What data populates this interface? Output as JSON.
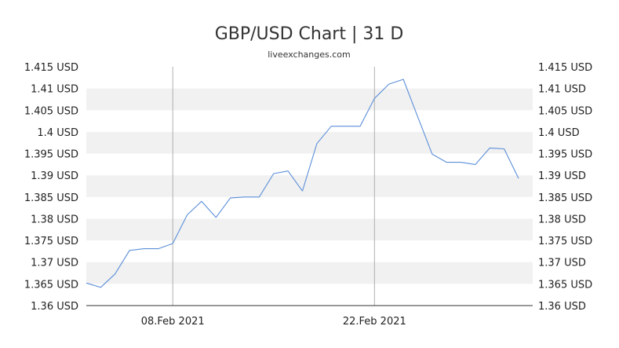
{
  "chart_data": {
    "type": "line",
    "title": "GBP/USD Chart | 31 D",
    "subtitle": "liveexchanges.com",
    "xlabel": "",
    "ylabel": "",
    "ylim": [
      1.36,
      1.415
    ],
    "y_tick_values": [
      1.36,
      1.365,
      1.37,
      1.375,
      1.38,
      1.385,
      1.39,
      1.395,
      1.4,
      1.405,
      1.41,
      1.415
    ],
    "y_tick_labels": [
      "1.36 USD",
      "1.365 USD",
      "1.37 USD",
      "1.375 USD",
      "1.38 USD",
      "1.385 USD",
      "1.39 USD",
      "1.395 USD",
      "1.4 USD",
      "1.405 USD",
      "1.41 USD",
      "1.415 USD"
    ],
    "x_range": [
      "2021-02-02",
      "2021-03-03"
    ],
    "x_ticks": [
      {
        "date": "2021-02-08",
        "label": "08.Feb 2021"
      },
      {
        "date": "2021-02-22",
        "label": "22.Feb 2021"
      }
    ],
    "grid": "alternating horizontal bands, vertical lines at x ticks",
    "legend": "none",
    "colors": {
      "line": "#5b8fd8",
      "band": "#f1f1f1",
      "vgrid": "#b0b0b0",
      "axis": "#333333"
    },
    "series": [
      {
        "points": [
          {
            "date": "2021-02-02",
            "value": 1.3652
          },
          {
            "date": "2021-02-03",
            "value": 1.3642
          },
          {
            "date": "2021-02-04",
            "value": 1.3673
          },
          {
            "date": "2021-02-05",
            "value": 1.3727
          },
          {
            "date": "2021-02-06",
            "value": 1.3731
          },
          {
            "date": "2021-02-07",
            "value": 1.3731
          },
          {
            "date": "2021-02-08",
            "value": 1.3743
          },
          {
            "date": "2021-02-09",
            "value": 1.3809
          },
          {
            "date": "2021-02-10",
            "value": 1.384
          },
          {
            "date": "2021-02-11",
            "value": 1.3803
          },
          {
            "date": "2021-02-12",
            "value": 1.3848
          },
          {
            "date": "2021-02-13",
            "value": 1.385
          },
          {
            "date": "2021-02-14",
            "value": 1.385
          },
          {
            "date": "2021-02-15",
            "value": 1.3904
          },
          {
            "date": "2021-02-16",
            "value": 1.391
          },
          {
            "date": "2021-02-17",
            "value": 1.3864
          },
          {
            "date": "2021-02-18",
            "value": 1.3973
          },
          {
            "date": "2021-02-19",
            "value": 1.4013
          },
          {
            "date": "2021-02-20",
            "value": 1.4013
          },
          {
            "date": "2021-02-21",
            "value": 1.4013
          },
          {
            "date": "2021-02-22",
            "value": 1.4077
          },
          {
            "date": "2021-02-23",
            "value": 1.411
          },
          {
            "date": "2021-02-24",
            "value": 1.4121
          },
          {
            "date": "2021-02-25",
            "value": 1.4035
          },
          {
            "date": "2021-02-26",
            "value": 1.3949
          },
          {
            "date": "2021-02-27",
            "value": 1.393
          },
          {
            "date": "2021-02-28",
            "value": 1.393
          },
          {
            "date": "2021-03-01",
            "value": 1.3925
          },
          {
            "date": "2021-03-02",
            "value": 1.3963
          },
          {
            "date": "2021-03-03",
            "value": 1.3961
          },
          {
            "date": "2021-03-04",
            "value": 1.3893
          }
        ]
      }
    ]
  }
}
